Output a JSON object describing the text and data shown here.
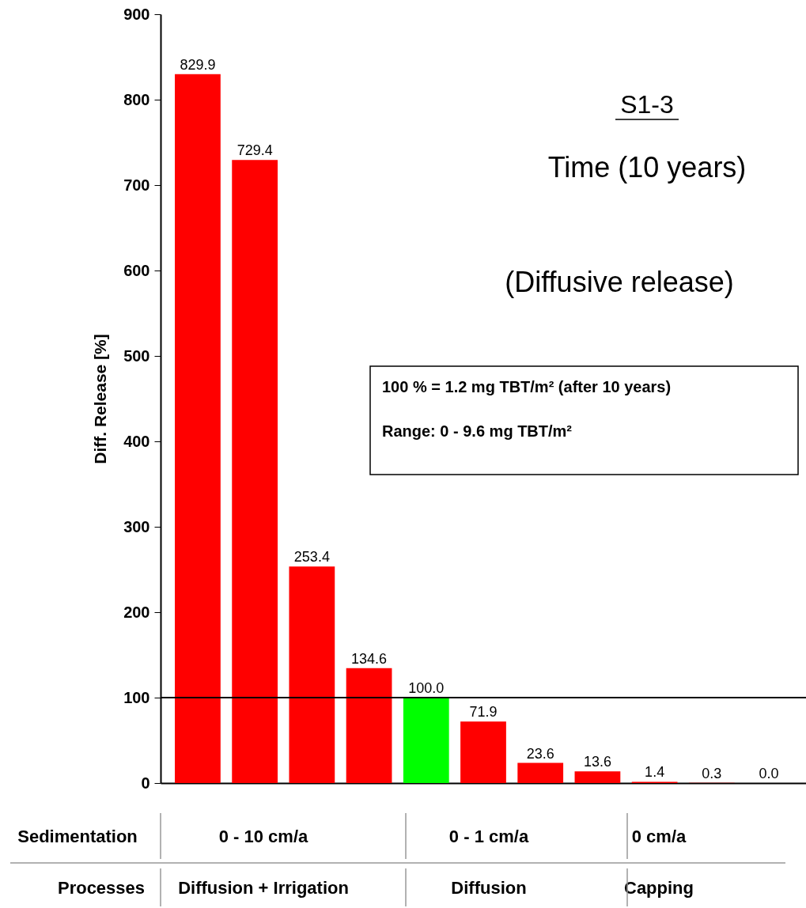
{
  "chart_data": {
    "type": "bar",
    "ylabel": "Diff. Release [%]",
    "categories": [
      null,
      null,
      null,
      null,
      null,
      null,
      null,
      null,
      null,
      null,
      null
    ],
    "values": [
      829.9,
      729.4,
      253.4,
      134.6,
      100.0,
      71.9,
      23.6,
      13.6,
      1.4,
      0.3,
      0.0
    ],
    "colors": [
      "#ff0000",
      "#ff0000",
      "#ff0000",
      "#ff0000",
      "#00ff00",
      "#ff0000",
      "#ff0000",
      "#ff0000",
      "#ff0000",
      "#ff0000",
      "#ff0000"
    ],
    "value_labels": [
      "829.9",
      "729.4",
      "253.4",
      "134.6",
      "100.0",
      "71.9",
      "23.6",
      "13.6",
      "1.4",
      "0.3",
      "0.0"
    ],
    "ylim": [
      0,
      900
    ],
    "yticks": [
      0,
      100,
      200,
      300,
      400,
      500,
      600,
      700,
      800,
      900
    ],
    "grid": false,
    "ref_lines": [
      {
        "axis": "y",
        "value": 100,
        "color": "#000000"
      }
    ],
    "annotations": [
      "S1-3",
      "Time (10 years)",
      "(Diffusive release)",
      "100 % = 1.2 mg TBT/m² (after 10 years)",
      "Range: 0 - 9.6 mg TBT/m²",
      "Sedimentation",
      "0 - 10 cm/a",
      "0 - 1 cm/a",
      "0 cm/a",
      "Processes",
      "Diffusion + Irrigation",
      "Diffusion",
      "Capping"
    ]
  }
}
